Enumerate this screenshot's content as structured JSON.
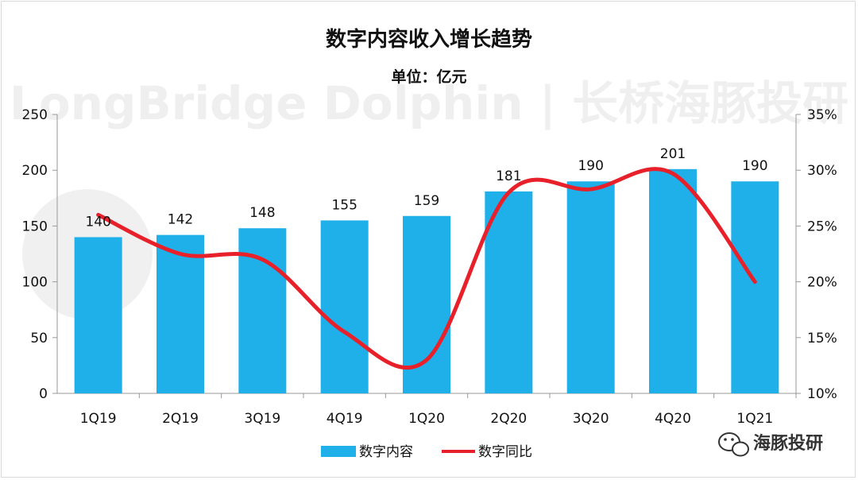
{
  "chart_data": {
    "type": "bar",
    "title": "数字内容收入增长趋势",
    "subtitle": "单位：亿元",
    "categories": [
      "1Q19",
      "2Q19",
      "3Q19",
      "4Q19",
      "1Q20",
      "2Q20",
      "3Q20",
      "4Q20",
      "1Q21"
    ],
    "series": [
      {
        "name": "数字内容",
        "type": "bar",
        "axis": "left",
        "color": "#1fb0ea",
        "values": [
          140,
          142,
          148,
          155,
          159,
          181,
          190,
          201,
          190
        ]
      },
      {
        "name": "数字同比",
        "type": "line",
        "axis": "right",
        "color": "#e8202a",
        "values": [
          0.26,
          0.225,
          0.22,
          0.155,
          0.13,
          0.28,
          0.283,
          0.297,
          0.2
        ]
      }
    ],
    "left_axis": {
      "min": 0,
      "max": 250,
      "ticks": [
        0,
        50,
        100,
        150,
        200,
        250
      ]
    },
    "right_axis": {
      "min": 0.1,
      "max": 0.35,
      "ticks": [
        "10%",
        "15%",
        "20%",
        "25%",
        "30%",
        "35%"
      ]
    },
    "legend_position": "bottom",
    "watermark": "LongBridge Dolphin | 长桥海豚投研",
    "source_label": "海豚投研"
  }
}
